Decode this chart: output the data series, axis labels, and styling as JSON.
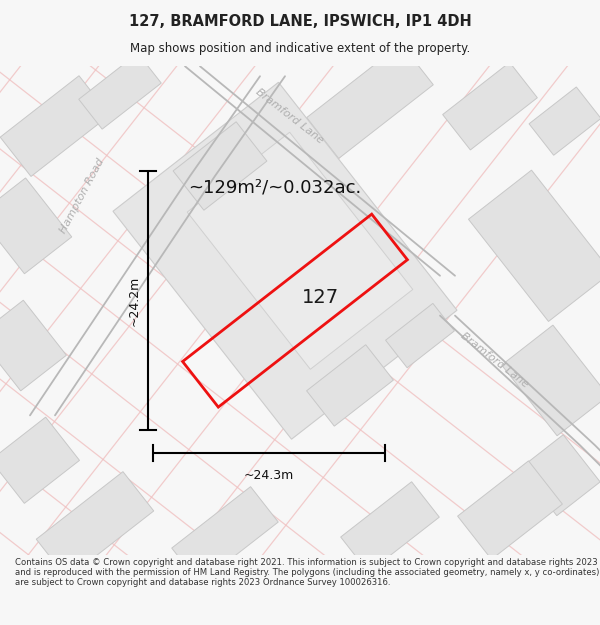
{
  "title": "127, BRAMFORD LANE, IPSWICH, IP1 4DH",
  "subtitle": "Map shows position and indicative extent of the property.",
  "footer": "Contains OS data © Crown copyright and database right 2021. This information is subject to Crown copyright and database rights 2023 and is reproduced with the permission of HM Land Registry. The polygons (including the associated geometry, namely x, y co-ordinates) are subject to Crown copyright and database rights 2023 Ordnance Survey 100026316.",
  "area_label": "~129m²/~0.032ac.",
  "number_label": "127",
  "width_label": "~24.3m",
  "height_label": "~24.2m",
  "bg_color": "#f7f7f7",
  "map_bg": "#f8f8f8",
  "block_color": "#e2e2e2",
  "block_edge": "#c8c8c8",
  "road_pink": "#f0c0c0",
  "plot_stroke": "#ee1111",
  "dim_stroke": "#111111",
  "street_label_color": "#b0b0b0",
  "title_color": "#222222",
  "footer_color": "#333333",
  "title_fontsize": 10.5,
  "subtitle_fontsize": 8.5,
  "area_fontsize": 13,
  "dim_fontsize": 9,
  "street_fontsize": 8,
  "num_fontsize": 14
}
